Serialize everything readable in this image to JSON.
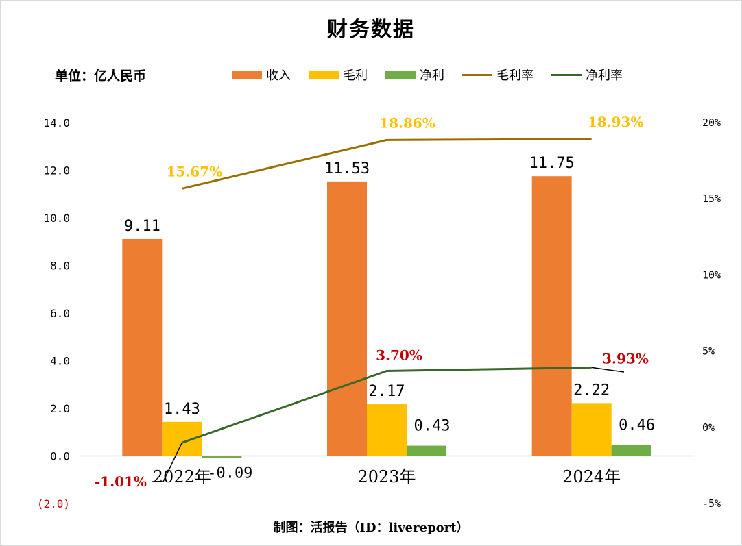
{
  "title": "财务数据",
  "unit_label": "单位：亿人民币",
  "footer": "制图：活报告（ID：livereport）",
  "legend": [
    {
      "name": "收入",
      "kind": "box",
      "color": "#ed7d31"
    },
    {
      "name": "毛利",
      "kind": "box",
      "color": "#ffc000"
    },
    {
      "name": "净利",
      "kind": "box",
      "color": "#70ad47"
    },
    {
      "name": "毛利率",
      "kind": "line",
      "color": "#9c6e00"
    },
    {
      "name": "净利率",
      "kind": "line",
      "color": "#38682a"
    }
  ],
  "chart_data": {
    "type": "bar",
    "title": "财务数据",
    "categories": [
      "2022年",
      "2023年",
      "2024年"
    ],
    "series": [
      {
        "name": "收入",
        "type": "bar",
        "axis": "left",
        "color": "#ed7d31",
        "values": [
          9.11,
          11.53,
          11.75
        ],
        "labels": [
          "9.11",
          "11.53",
          "11.75"
        ]
      },
      {
        "name": "毛利",
        "type": "bar",
        "axis": "left",
        "color": "#ffc000",
        "values": [
          1.43,
          2.17,
          2.22
        ],
        "labels": [
          "1.43",
          "2.17",
          "2.22"
        ]
      },
      {
        "name": "净利",
        "type": "bar",
        "axis": "left",
        "color": "#70ad47",
        "values": [
          -0.09,
          0.43,
          0.46
        ],
        "labels": [
          "-0.09",
          "0.43",
          "0.46"
        ]
      },
      {
        "name": "毛利率",
        "type": "line",
        "axis": "right",
        "color": "#9c6e00",
        "values": [
          15.67,
          18.86,
          18.93
        ],
        "labels": [
          "15.67%",
          "18.86%",
          "18.93%"
        ]
      },
      {
        "name": "净利率",
        "type": "line",
        "axis": "right",
        "color": "#38682a",
        "values": [
          -1.01,
          3.7,
          3.93
        ],
        "labels": [
          "-1.01%",
          "3.70%",
          "3.93%"
        ]
      }
    ],
    "left_axis": {
      "ylim": [
        -2.0,
        14.0
      ],
      "ticks": [
        14.0,
        12.0,
        10.0,
        8.0,
        6.0,
        4.0,
        2.0,
        0.0,
        -2.0
      ],
      "tick_labels": [
        "14.0",
        "12.0",
        "10.0",
        "8.0",
        "6.0",
        "4.0",
        "2.0",
        "0.0",
        "(2.0)"
      ]
    },
    "right_axis": {
      "ylim": [
        -5,
        20
      ],
      "ticks": [
        20,
        15,
        10,
        5,
        0,
        -5
      ],
      "tick_labels": [
        "20%",
        "15%",
        "10%",
        "5%",
        "0%",
        "-5%"
      ]
    },
    "ylabel": "单位：亿人民币",
    "legend_position": "top",
    "grid": false
  }
}
